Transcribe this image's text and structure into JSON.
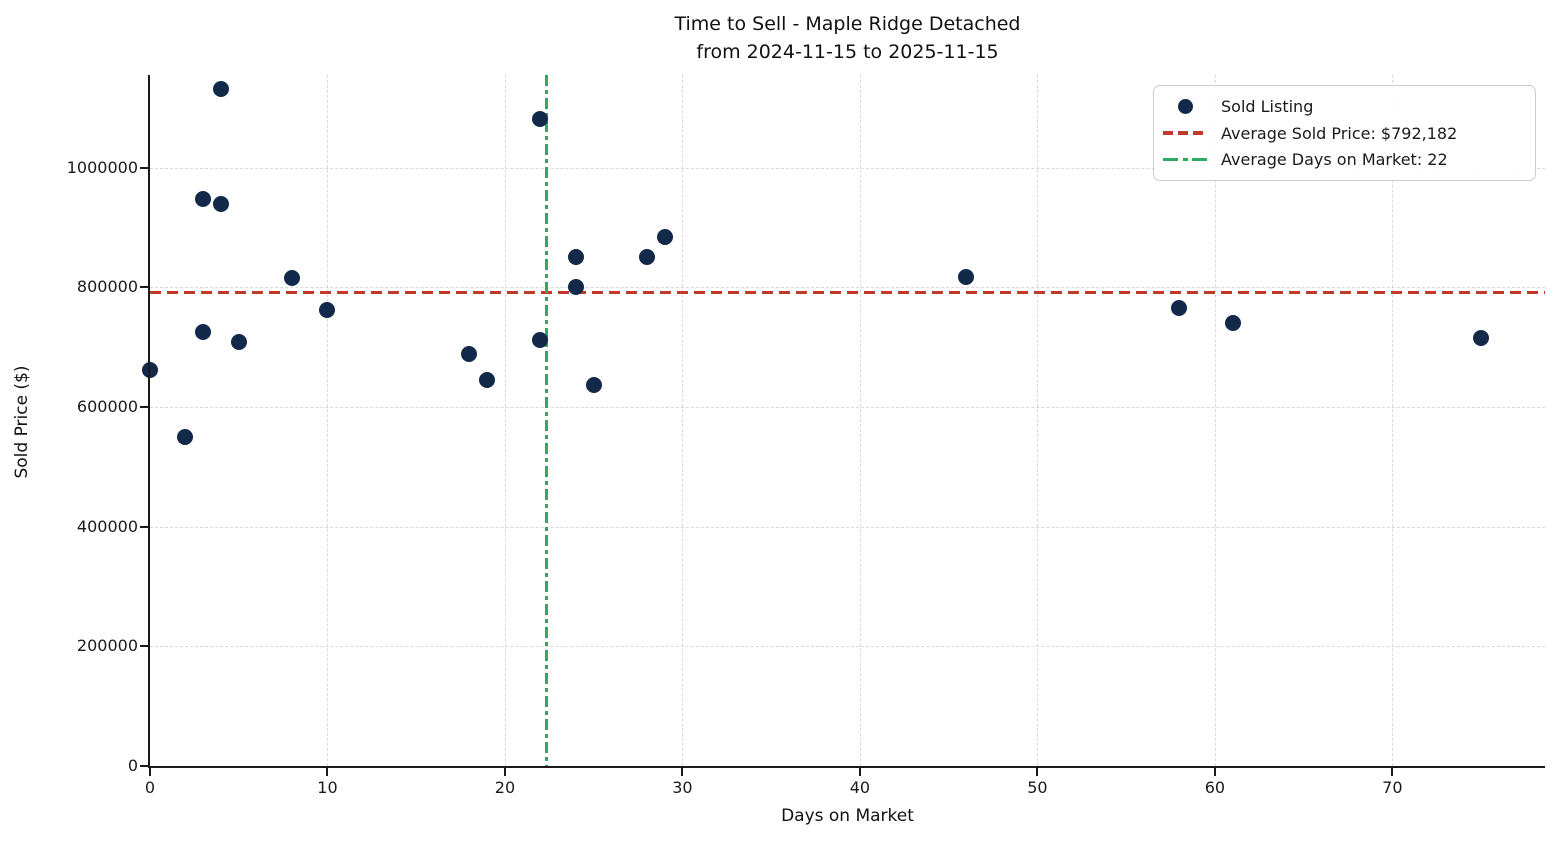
{
  "chart_data": {
    "type": "scatter",
    "title": "Time to Sell - Maple Ridge Detached",
    "subtitle": "from 2024-11-15 to 2025-11-15",
    "xlabel": "Days on Market",
    "ylabel": "Sold Price ($)",
    "xlim": [
      0,
      78.6
    ],
    "ylim": [
      0,
      1155000
    ],
    "x_ticks": [
      0,
      10,
      20,
      30,
      40,
      50,
      60,
      70
    ],
    "y_ticks": [
      0,
      200000,
      400000,
      600000,
      800000,
      1000000
    ],
    "grid": true,
    "legend_position": "upper right",
    "series": [
      {
        "name": "Sold Listing",
        "color": "#12294a",
        "points": [
          [
            0,
            662000
          ],
          [
            2,
            550000
          ],
          [
            3,
            948000
          ],
          [
            3,
            725000
          ],
          [
            4,
            1132000
          ],
          [
            4,
            940000
          ],
          [
            5,
            708000
          ],
          [
            8,
            815000
          ],
          [
            10,
            762000
          ],
          [
            18,
            688000
          ],
          [
            19,
            645000
          ],
          [
            22,
            1082000
          ],
          [
            22,
            712000
          ],
          [
            24,
            850000
          ],
          [
            24,
            800000
          ],
          [
            25,
            637000
          ],
          [
            28,
            850000
          ],
          [
            29,
            884000
          ],
          [
            46,
            818000
          ],
          [
            58,
            765000
          ],
          [
            61,
            740000
          ],
          [
            75,
            715000
          ]
        ]
      }
    ],
    "reference_lines": {
      "avg_sold_price": {
        "label": "Average Sold Price: $792,182",
        "value": 792182,
        "orientation": "horizontal",
        "style": "dashed",
        "color": "#c0392b"
      },
      "avg_days_on_market": {
        "label": "Average Days on Market: 22",
        "value": 22.3,
        "display_value": 22,
        "orientation": "vertical",
        "style": "dashdot",
        "color": "#2baa63"
      }
    }
  }
}
